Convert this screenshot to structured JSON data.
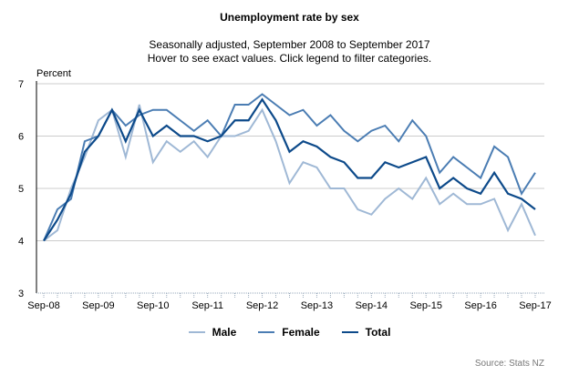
{
  "chart_data": {
    "type": "line",
    "title": "Unemployment rate by sex",
    "subtitle_lines": [
      "Seasonally adjusted, September 2008 to September 2017",
      "Hover to see exact values. Click legend to filter categories."
    ],
    "ylabel": "Percent",
    "ylim": [
      3,
      7
    ],
    "yticks": [
      "3",
      "4",
      "5",
      "6",
      "7"
    ],
    "xtick_labels": [
      "Sep-08",
      "Sep-09",
      "Sep-10",
      "Sep-11",
      "Sep-12",
      "Sep-13",
      "Sep-14",
      "Sep-15",
      "Sep-16",
      "Sep-17"
    ],
    "x": [
      "Sep-08",
      "Dec-08",
      "Mar-09",
      "Jun-09",
      "Sep-09",
      "Dec-09",
      "Mar-10",
      "Jun-10",
      "Sep-10",
      "Dec-10",
      "Mar-11",
      "Jun-11",
      "Sep-11",
      "Dec-11",
      "Mar-12",
      "Jun-12",
      "Sep-12",
      "Dec-12",
      "Mar-13",
      "Jun-13",
      "Sep-13",
      "Dec-13",
      "Mar-14",
      "Jun-14",
      "Sep-14",
      "Dec-14",
      "Mar-15",
      "Jun-15",
      "Sep-15",
      "Dec-15",
      "Mar-16",
      "Jun-16",
      "Sep-16",
      "Dec-16",
      "Mar-17",
      "Jun-17",
      "Sep-17"
    ],
    "grid": true,
    "legend": "bottom",
    "series": [
      {
        "name": "Male",
        "color": "#9fb8d5",
        "values": [
          4.0,
          4.2,
          5.0,
          5.6,
          6.3,
          6.5,
          5.6,
          6.6,
          5.5,
          5.9,
          5.7,
          5.9,
          5.6,
          6.0,
          6.0,
          6.1,
          6.5,
          5.9,
          5.1,
          5.5,
          5.4,
          5.0,
          5.0,
          4.6,
          4.5,
          4.8,
          5.0,
          4.8,
          5.2,
          4.7,
          4.9,
          4.7,
          4.7,
          4.8,
          4.2,
          4.7,
          4.1
        ]
      },
      {
        "name": "Female",
        "color": "#4b7db3",
        "values": [
          4.0,
          4.6,
          4.8,
          5.9,
          6.0,
          6.5,
          6.2,
          6.4,
          6.5,
          6.5,
          6.3,
          6.1,
          6.3,
          6.0,
          6.6,
          6.6,
          6.8,
          6.6,
          6.4,
          6.5,
          6.2,
          6.4,
          6.1,
          5.9,
          6.1,
          6.2,
          5.9,
          6.3,
          6.0,
          5.3,
          5.6,
          5.4,
          5.2,
          5.8,
          5.6,
          4.9,
          5.3
        ]
      },
      {
        "name": "Total",
        "color": "#0d4a8a",
        "values": [
          4.0,
          4.4,
          4.9,
          5.7,
          6.0,
          6.5,
          5.9,
          6.5,
          6.0,
          6.2,
          6.0,
          6.0,
          5.9,
          6.0,
          6.3,
          6.3,
          6.7,
          6.3,
          5.7,
          5.9,
          5.8,
          5.6,
          5.5,
          5.2,
          5.2,
          5.5,
          5.4,
          5.5,
          5.6,
          5.0,
          5.2,
          5.0,
          4.9,
          5.3,
          4.9,
          4.8,
          4.6
        ]
      }
    ],
    "source": "Source: Stats NZ"
  }
}
